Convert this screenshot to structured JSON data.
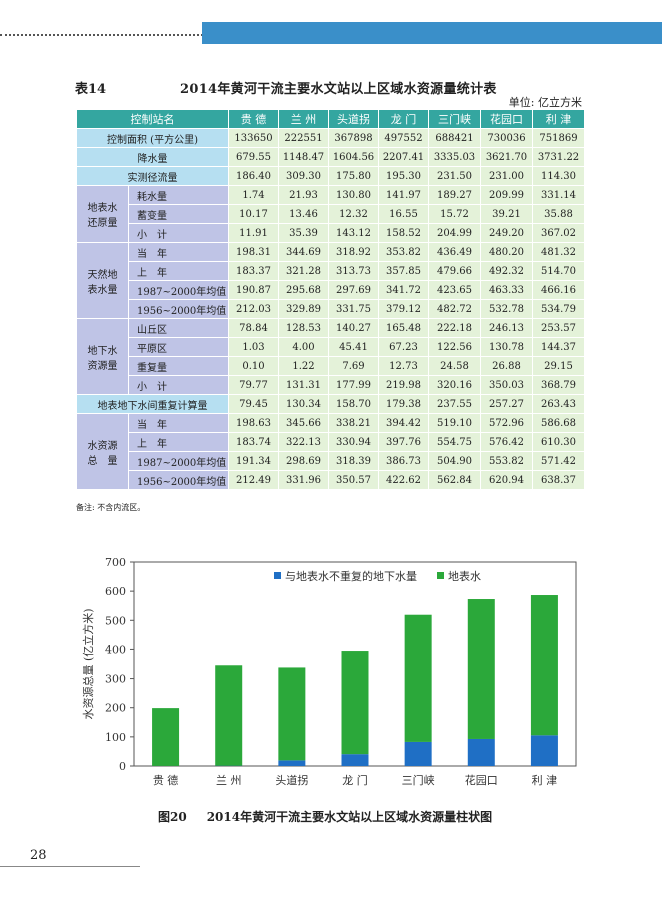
{
  "header": {
    "table_no": "表14",
    "table_title": "2014年黄河干流主要水文站以上区域水资源量统计表",
    "unit": "单位: 亿立方米"
  },
  "table": {
    "station_header": "控制站名",
    "stations": [
      "贵 德",
      "兰 州",
      "头道拐",
      "龙 门",
      "三门峡",
      "花园口",
      "利 津"
    ],
    "rows": [
      {
        "group": null,
        "label": "控制面积 (平方公里)",
        "values": [
          "133650",
          "222551",
          "367898",
          "497552",
          "688421",
          "730036",
          "751869"
        ]
      },
      {
        "group": null,
        "label": "降水量",
        "values": [
          "679.55",
          "1148.47",
          "1604.56",
          "2207.41",
          "3335.03",
          "3621.70",
          "3731.22"
        ]
      },
      {
        "group": null,
        "label": "实测径流量",
        "values": [
          "186.40",
          "309.30",
          "175.80",
          "195.30",
          "231.50",
          "231.00",
          "114.30"
        ]
      },
      {
        "group": "地表水还原量",
        "label": "耗水量",
        "values": [
          "1.74",
          "21.93",
          "130.80",
          "141.97",
          "189.27",
          "209.99",
          "331.14"
        ]
      },
      {
        "group": "地表水还原量",
        "label": "蓄变量",
        "values": [
          "10.17",
          "13.46",
          "12.32",
          "16.55",
          "15.72",
          "39.21",
          "35.88"
        ]
      },
      {
        "group": "地表水还原量",
        "label": "小　计",
        "values": [
          "11.91",
          "35.39",
          "143.12",
          "158.52",
          "204.99",
          "249.20",
          "367.02"
        ]
      },
      {
        "group": "天然地表水量",
        "label": "当　年",
        "values": [
          "198.31",
          "344.69",
          "318.92",
          "353.82",
          "436.49",
          "480.20",
          "481.32"
        ]
      },
      {
        "group": "天然地表水量",
        "label": "上　年",
        "values": [
          "183.37",
          "321.28",
          "313.73",
          "357.85",
          "479.66",
          "492.32",
          "514.70"
        ]
      },
      {
        "group": "天然地表水量",
        "label": "1987~2000年均值",
        "values": [
          "190.87",
          "295.68",
          "297.69",
          "341.72",
          "423.65",
          "463.33",
          "466.16"
        ]
      },
      {
        "group": "天然地表水量",
        "label": "1956~2000年均值",
        "values": [
          "212.03",
          "329.89",
          "331.75",
          "379.12",
          "482.72",
          "532.78",
          "534.79"
        ]
      },
      {
        "group": "地下水资源量",
        "label": "山丘区",
        "values": [
          "78.84",
          "128.53",
          "140.27",
          "165.48",
          "222.18",
          "246.13",
          "253.57"
        ]
      },
      {
        "group": "地下水资源量",
        "label": "平原区",
        "values": [
          "1.03",
          "4.00",
          "45.41",
          "67.23",
          "122.56",
          "130.78",
          "144.37"
        ]
      },
      {
        "group": "地下水资源量",
        "label": "重复量",
        "values": [
          "0.10",
          "1.22",
          "7.69",
          "12.73",
          "24.58",
          "26.88",
          "29.15"
        ]
      },
      {
        "group": "地下水资源量",
        "label": "小　计",
        "values": [
          "79.77",
          "131.31",
          "177.99",
          "219.98",
          "320.16",
          "350.03",
          "368.79"
        ]
      },
      {
        "group": null,
        "label": "地表地下水间重复计算量",
        "values": [
          "79.45",
          "130.34",
          "158.70",
          "179.38",
          "237.55",
          "257.27",
          "263.43"
        ]
      },
      {
        "group": "水资源总量",
        "label": "当　年",
        "values": [
          "198.63",
          "345.66",
          "338.21",
          "394.42",
          "519.10",
          "572.96",
          "586.68"
        ]
      },
      {
        "group": "水资源总量",
        "label": "上　年",
        "values": [
          "183.74",
          "322.13",
          "330.94",
          "397.76",
          "554.75",
          "576.42",
          "610.30"
        ]
      },
      {
        "group": "水资源总量",
        "label": "1987~2000年均值",
        "values": [
          "191.34",
          "298.69",
          "318.39",
          "386.73",
          "504.90",
          "553.82",
          "571.42"
        ]
      },
      {
        "group": "水资源总量",
        "label": "1956~2000年均值",
        "values": [
          "212.49",
          "331.96",
          "350.57",
          "422.62",
          "562.84",
          "620.94",
          "638.37"
        ]
      }
    ],
    "group_labels": {
      "地表水还原量": [
        "地表水",
        "还原量"
      ],
      "天然地表水量": [
        "天然地",
        "表水量"
      ],
      "地下水资源量": [
        "地下水",
        "资源量"
      ],
      "水资源总量": [
        "水资源",
        "总　量"
      ]
    }
  },
  "note": "备注: 不含内流区。",
  "chart_data": {
    "type": "bar",
    "stacked": true,
    "categories": [
      "贵 德",
      "兰 州",
      "头道拐",
      "龙 门",
      "三门峡",
      "花园口",
      "利 津"
    ],
    "series": [
      {
        "name": "与地表水不重复的地下水量",
        "color": "#1f6fc5",
        "values": [
          0.32,
          0.97,
          19.29,
          40.6,
          82.61,
          92.76,
          105.36
        ]
      },
      {
        "name": "地表水",
        "color": "#2ba83a",
        "values": [
          198.31,
          344.69,
          318.92,
          353.82,
          436.49,
          480.2,
          481.32
        ]
      }
    ],
    "ylabel": "水资源总量 (亿立方米)",
    "ylim": [
      0,
      700
    ],
    "yticks": [
      0,
      100,
      200,
      300,
      400,
      500,
      600,
      700
    ],
    "grid": false,
    "legend": "top-right"
  },
  "figure": {
    "no": "图20",
    "title": "2014年黄河干流主要水文站以上区域水资源量柱状图"
  },
  "page_number": "28"
}
